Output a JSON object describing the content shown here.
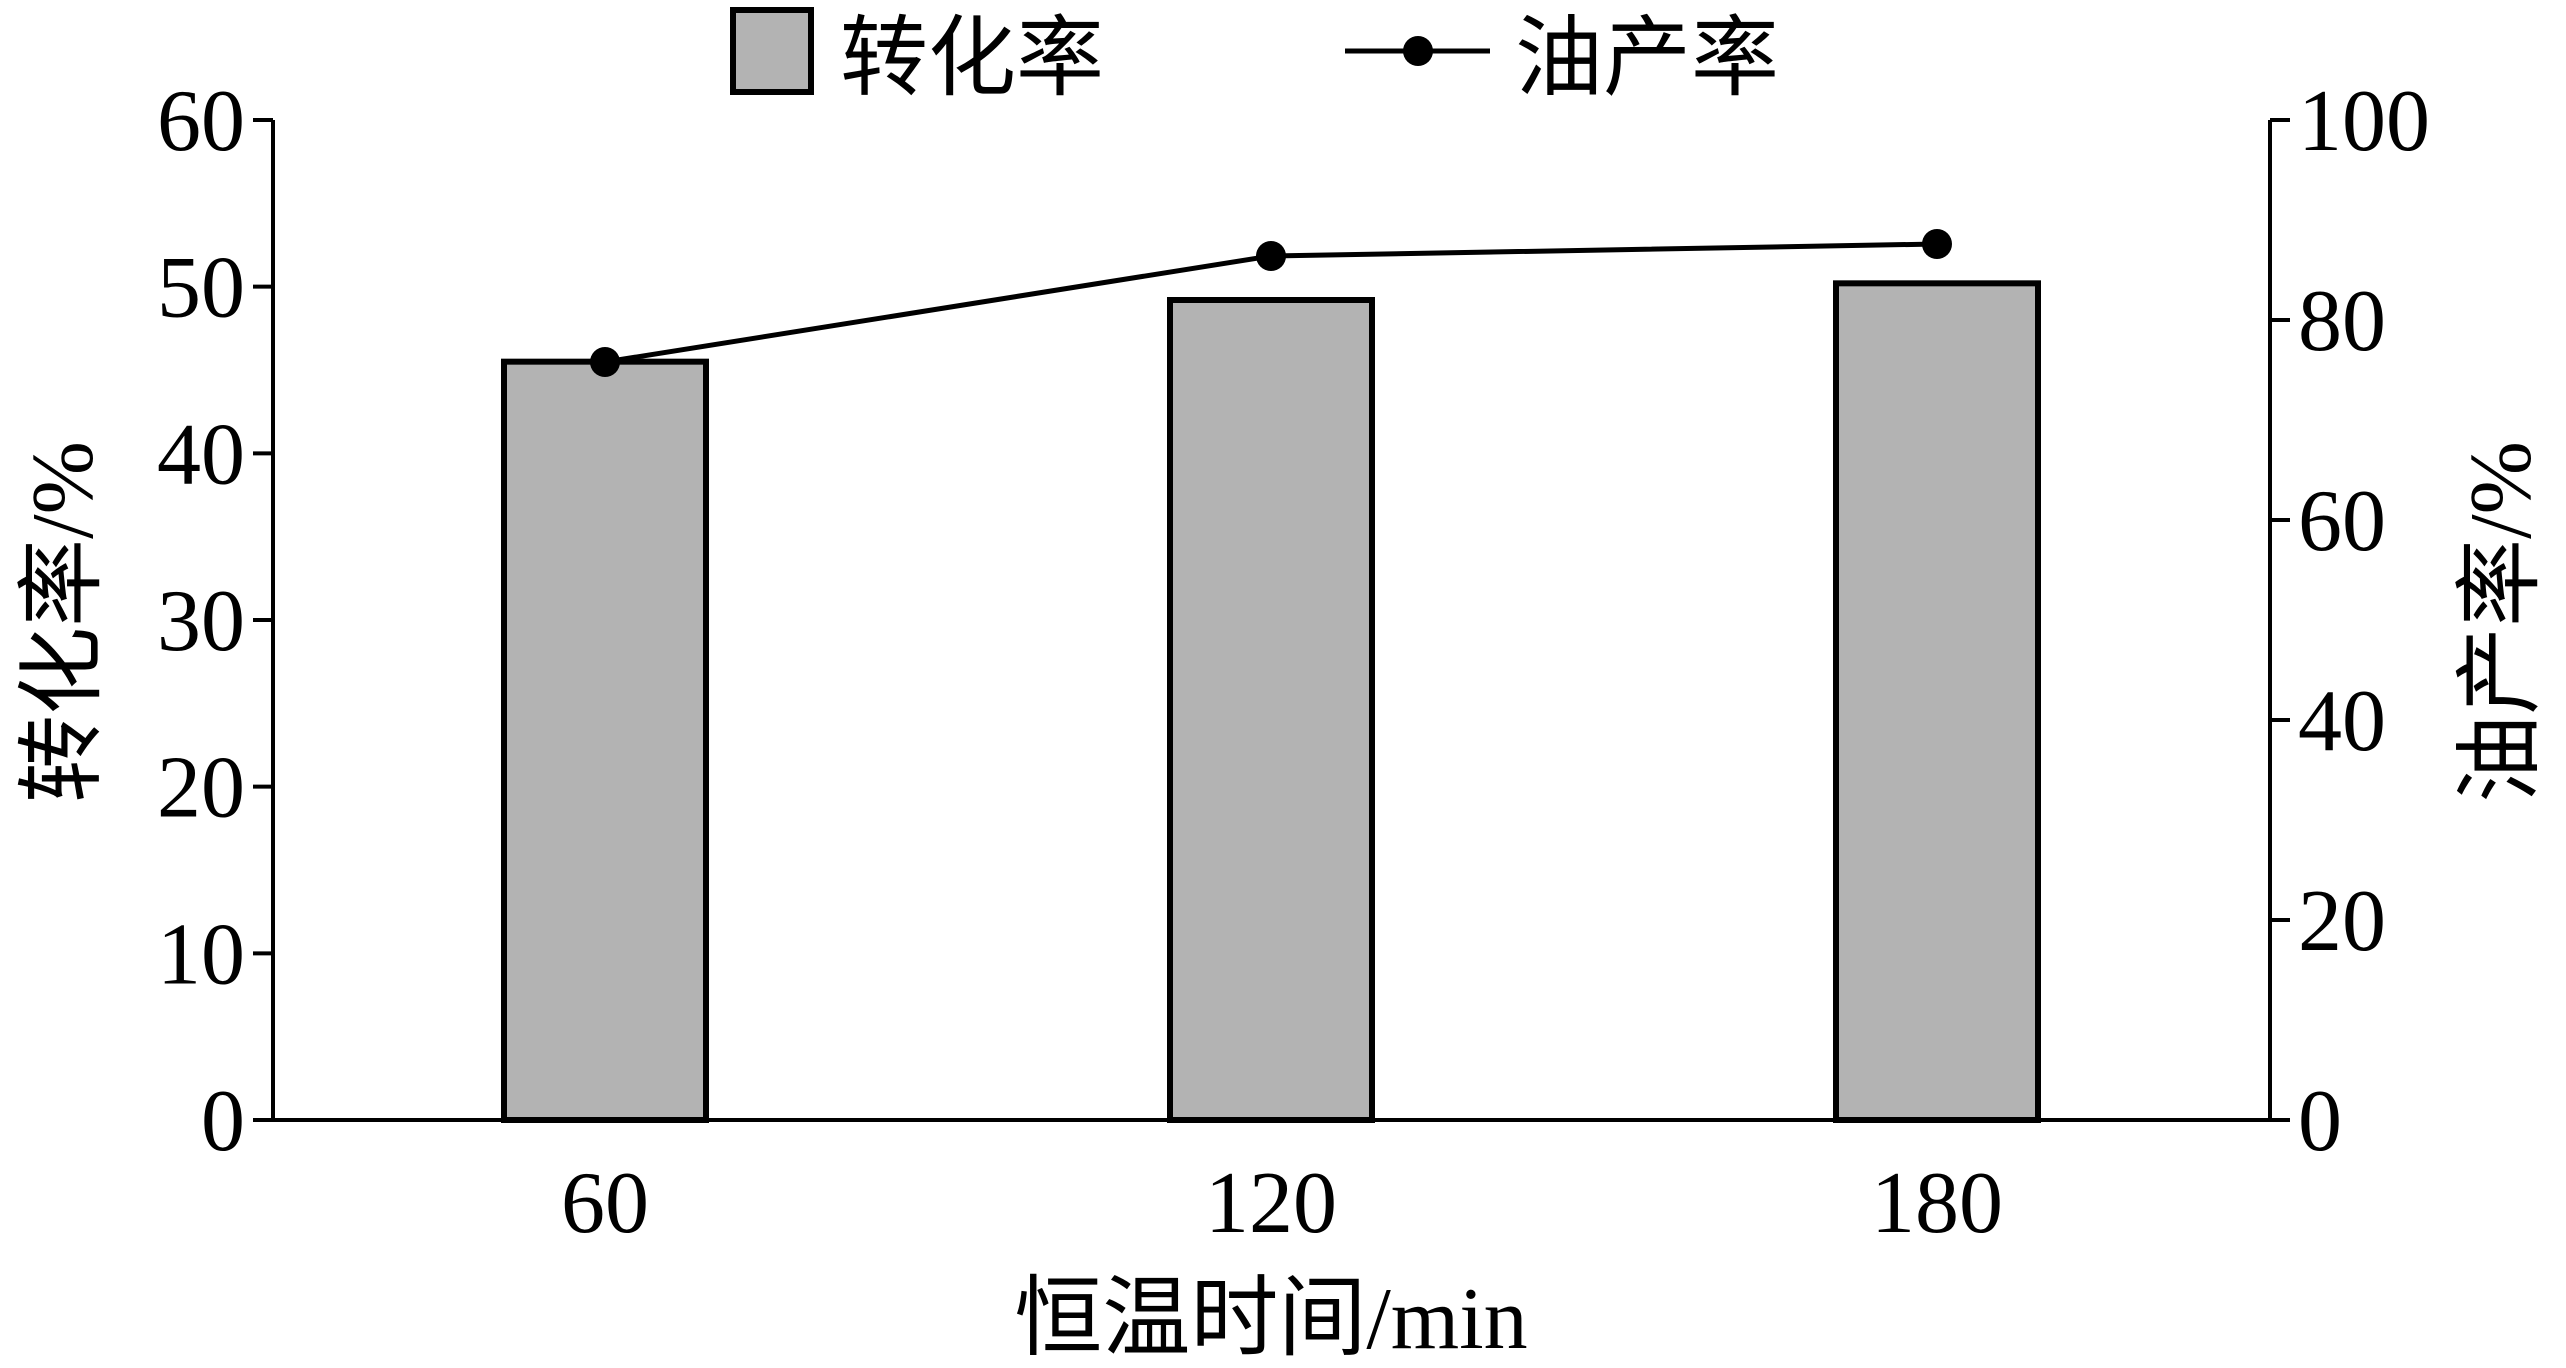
{
  "chart_data": {
    "type": "bar",
    "categories": [
      "60",
      "120",
      "180"
    ],
    "xlabel": "恒温时间/min",
    "ylabel_left": "转化率/%",
    "ylabel_right": "油产率/%",
    "ylim_left": [
      0,
      60
    ],
    "ylim_right": [
      0,
      100
    ],
    "yticks_left": [
      "0",
      "10",
      "20",
      "30",
      "40",
      "50",
      "60"
    ],
    "yticks_right": [
      "0",
      "20",
      "40",
      "60",
      "80",
      "100"
    ],
    "grid": false,
    "legend_position": "top-center",
    "series": [
      {
        "name": "转化率",
        "kind": "bar",
        "axis": "left",
        "values": [
          45.5,
          49.2,
          50.2
        ],
        "color": "#b3b3b3"
      },
      {
        "name": "油产率",
        "kind": "line",
        "axis": "right",
        "values": [
          75.8,
          86.4,
          87.6
        ],
        "color": "#000000"
      }
    ]
  }
}
